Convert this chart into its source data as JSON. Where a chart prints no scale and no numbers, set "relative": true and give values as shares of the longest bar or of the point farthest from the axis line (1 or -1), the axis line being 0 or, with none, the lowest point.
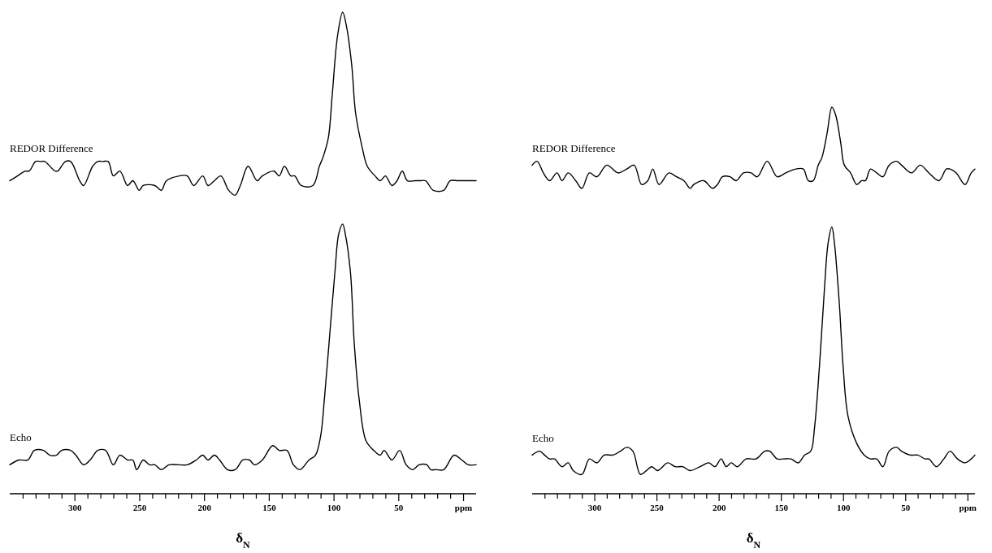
{
  "chart_data": [
    {
      "type": "line",
      "relative": true,
      "xlabel": "δ$_{N}$",
      "xlim": [
        350,
        -10
      ],
      "xticks": [
        {
          "value": 340,
          "label": null
        },
        {
          "value": 330,
          "label": null
        },
        {
          "value": 320,
          "label": null
        },
        {
          "value": 310,
          "label": null
        },
        300,
        {
          "value": 290,
          "label": null
        },
        {
          "value": 280,
          "label": null
        },
        {
          "value": 270,
          "label": null
        },
        {
          "value": 260,
          "label": null
        },
        250,
        {
          "value": 240,
          "label": null
        },
        {
          "value": 230,
          "label": null
        },
        {
          "value": 220,
          "label": null
        },
        {
          "value": 210,
          "label": null
        },
        200,
        {
          "value": 190,
          "label": null
        },
        {
          "value": 180,
          "label": null
        },
        {
          "value": 170,
          "label": null
        },
        {
          "value": 160,
          "label": null
        },
        150,
        {
          "value": 140,
          "label": null
        },
        {
          "value": 130,
          "label": null
        },
        {
          "value": 120,
          "label": null
        },
        {
          "value": 110,
          "label": null
        },
        100,
        {
          "value": 90,
          "label": null
        },
        {
          "value": 80,
          "label": null
        },
        {
          "value": 70,
          "label": null
        },
        {
          "value": 60,
          "label": null
        },
        50,
        {
          "value": 40,
          "label": null
        },
        {
          "value": 30,
          "label": null
        },
        {
          "value": 20,
          "label": null
        },
        {
          "value": 10,
          "label": null
        },
        {
          "value": 0,
          "label": "ppm"
        }
      ],
      "grid": false,
      "legend": false,
      "series": [
        {
          "name": "REDOR Difference",
          "color": "#000000",
          "x": [
            350,
            344,
            338,
            335,
            330,
            326,
            323,
            315,
            313,
            307,
            303,
            296,
            293,
            286,
            282,
            278,
            274,
            270,
            265,
            259,
            255,
            250,
            247,
            238,
            233,
            229,
            219,
            213,
            208,
            201,
            197,
            192,
            187,
            181,
            176,
            172,
            166,
            159,
            155,
            146,
            142,
            138,
            133,
            130,
            125,
            116,
            111,
            108,
            104,
            101,
            97,
            93,
            90,
            86,
            83,
            78,
            74,
            68,
            64,
            60,
            55,
            51,
            47,
            43,
            37,
            33,
            29,
            23,
            15,
            10,
            4,
            -1,
            -4,
            -10
          ],
          "values": [
            0.65,
            0.66,
            0.67,
            0.67,
            0.69,
            0.69,
            0.69,
            0.67,
            0.67,
            0.69,
            0.69,
            0.65,
            0.64,
            0.68,
            0.69,
            0.69,
            0.69,
            0.66,
            0.67,
            0.64,
            0.65,
            0.63,
            0.64,
            0.64,
            0.63,
            0.65,
            0.66,
            0.66,
            0.64,
            0.66,
            0.64,
            0.65,
            0.66,
            0.63,
            0.62,
            0.64,
            0.68,
            0.65,
            0.66,
            0.67,
            0.66,
            0.68,
            0.66,
            0.66,
            0.64,
            0.64,
            0.68,
            0.7,
            0.74,
            0.83,
            0.95,
            1,
            0.97,
            0.89,
            0.79,
            0.72,
            0.68,
            0.66,
            0.65,
            0.66,
            0.64,
            0.65,
            0.67,
            0.65,
            0.65,
            0.65,
            0.65,
            0.63,
            0.63,
            0.65,
            0.65,
            0.65,
            0.65,
            0.65
          ]
        },
        {
          "name": "Echo",
          "color": "#000000",
          "x": [
            350,
            343,
            336,
            331,
            324,
            319,
            314,
            310,
            303,
            299,
            293,
            288,
            282,
            276,
            270,
            265,
            259,
            255,
            252,
            247,
            242,
            238,
            233,
            227,
            219,
            213,
            206,
            201,
            197,
            192,
            188,
            182,
            176,
            170,
            165,
            161,
            155,
            147,
            142,
            136,
            131,
            126,
            119,
            114,
            110,
            107,
            103,
            99,
            96,
            93,
            91,
            87,
            84,
            80,
            75,
            69,
            64,
            61,
            55,
            49,
            44,
            39,
            34,
            28,
            25,
            21,
            15,
            7,
            1,
            -4,
            -10
          ],
          "values": [
            0.06,
            0.07,
            0.07,
            0.09,
            0.09,
            0.08,
            0.08,
            0.09,
            0.09,
            0.08,
            0.06,
            0.07,
            0.09,
            0.09,
            0.06,
            0.08,
            0.07,
            0.07,
            0.05,
            0.07,
            0.06,
            0.06,
            0.05,
            0.06,
            0.06,
            0.06,
            0.07,
            0.08,
            0.07,
            0.08,
            0.07,
            0.05,
            0.05,
            0.07,
            0.07,
            0.06,
            0.07,
            0.1,
            0.09,
            0.09,
            0.06,
            0.05,
            0.07,
            0.08,
            0.12,
            0.2,
            0.33,
            0.46,
            0.54,
            0.56,
            0.54,
            0.46,
            0.31,
            0.19,
            0.11,
            0.09,
            0.08,
            0.09,
            0.07,
            0.09,
            0.06,
            0.05,
            0.06,
            0.06,
            0.05,
            0.05,
            0.05,
            0.08,
            0.07,
            0.06,
            0.06
          ]
        }
      ]
    },
    {
      "type": "line",
      "relative": true,
      "xlabel": "δ$_{N}$",
      "xlim": [
        350,
        -6
      ],
      "xticks": [
        {
          "value": 340,
          "label": null
        },
        {
          "value": 330,
          "label": null
        },
        {
          "value": 320,
          "label": null
        },
        {
          "value": 310,
          "label": null
        },
        300,
        {
          "value": 290,
          "label": null
        },
        {
          "value": 280,
          "label": null
        },
        {
          "value": 270,
          "label": null
        },
        {
          "value": 260,
          "label": null
        },
        250,
        {
          "value": 240,
          "label": null
        },
        {
          "value": 230,
          "label": null
        },
        {
          "value": 220,
          "label": null
        },
        {
          "value": 210,
          "label": null
        },
        200,
        {
          "value": 190,
          "label": null
        },
        {
          "value": 180,
          "label": null
        },
        {
          "value": 170,
          "label": null
        },
        {
          "value": 160,
          "label": null
        },
        150,
        {
          "value": 140,
          "label": null
        },
        {
          "value": 130,
          "label": null
        },
        {
          "value": 120,
          "label": null
        },
        {
          "value": 110,
          "label": null
        },
        100,
        {
          "value": 90,
          "label": null
        },
        {
          "value": 80,
          "label": null
        },
        {
          "value": 70,
          "label": null
        },
        {
          "value": 60,
          "label": null
        },
        50,
        {
          "value": 40,
          "label": null
        },
        {
          "value": 30,
          "label": null
        },
        {
          "value": 20,
          "label": null
        },
        {
          "value": 10,
          "label": null
        },
        {
          "value": 0,
          "label": "ppm"
        }
      ],
      "grid": false,
      "legend": false,
      "series": [
        {
          "name": "REDOR Difference",
          "color": "#000000",
          "x": [
            350,
            346,
            341,
            336,
            330,
            326,
            321,
            315,
            310,
            304,
            298,
            290,
            281,
            274,
            268,
            262,
            257,
            253,
            248,
            240,
            234,
            228,
            223,
            220,
            212,
            205,
            201,
            197,
            191,
            186,
            180,
            174,
            169,
            161,
            153,
            146,
            138,
            132,
            128,
            124,
            120,
            117,
            113,
            109,
            106,
            102,
            99,
            94,
            89,
            85,
            82,
            78,
            73,
            68,
            63,
            57,
            53,
            45,
            38,
            31,
            23,
            17,
            14,
            9,
            2,
            -3,
            -6
          ],
          "values": [
            0.85,
            0.86,
            0.83,
            0.81,
            0.83,
            0.81,
            0.83,
            0.81,
            0.79,
            0.83,
            0.82,
            0.85,
            0.83,
            0.84,
            0.85,
            0.8,
            0.81,
            0.84,
            0.8,
            0.83,
            0.82,
            0.81,
            0.79,
            0.8,
            0.81,
            0.79,
            0.8,
            0.82,
            0.82,
            0.81,
            0.83,
            0.83,
            0.82,
            0.86,
            0.82,
            0.83,
            0.84,
            0.84,
            0.81,
            0.81,
            0.85,
            0.87,
            0.93,
            1,
            0.98,
            0.91,
            0.85,
            0.83,
            0.8,
            0.81,
            0.81,
            0.84,
            0.83,
            0.82,
            0.85,
            0.86,
            0.85,
            0.83,
            0.85,
            0.83,
            0.81,
            0.84,
            0.84,
            0.83,
            0.8,
            0.83,
            0.84
          ]
        },
        {
          "name": "Echo",
          "color": "#000000",
          "x": [
            350,
            344,
            340,
            336,
            332,
            326,
            321,
            317,
            310,
            304,
            298,
            292,
            285,
            279,
            274,
            269,
            263,
            258,
            254,
            249,
            241,
            235,
            229,
            223,
            215,
            208,
            203,
            198,
            194,
            190,
            185,
            178,
            170,
            163,
            159,
            153,
            148,
            142,
            136,
            131,
            126,
            123,
            119,
            115,
            112,
            109,
            107,
            103,
            100,
            96,
            89,
            83,
            78,
            73,
            68,
            63,
            57,
            53,
            46,
            40,
            34,
            31,
            25,
            19,
            14,
            8,
            2,
            -3,
            -6
          ],
          "values": [
            0.1,
            0.11,
            0.1,
            0.09,
            0.09,
            0.07,
            0.08,
            0.06,
            0.05,
            0.09,
            0.08,
            0.1,
            0.1,
            0.11,
            0.12,
            0.11,
            0.05,
            0.06,
            0.07,
            0.06,
            0.08,
            0.07,
            0.07,
            0.06,
            0.07,
            0.08,
            0.07,
            0.09,
            0.07,
            0.08,
            0.07,
            0.09,
            0.09,
            0.11,
            0.11,
            0.09,
            0.09,
            0.09,
            0.08,
            0.1,
            0.11,
            0.17,
            0.33,
            0.53,
            0.65,
            0.69,
            0.65,
            0.49,
            0.33,
            0.2,
            0.13,
            0.1,
            0.09,
            0.09,
            0.07,
            0.11,
            0.12,
            0.11,
            0.1,
            0.1,
            0.09,
            0.09,
            0.07,
            0.09,
            0.11,
            0.09,
            0.08,
            0.09,
            0.1
          ]
        }
      ]
    }
  ]
}
